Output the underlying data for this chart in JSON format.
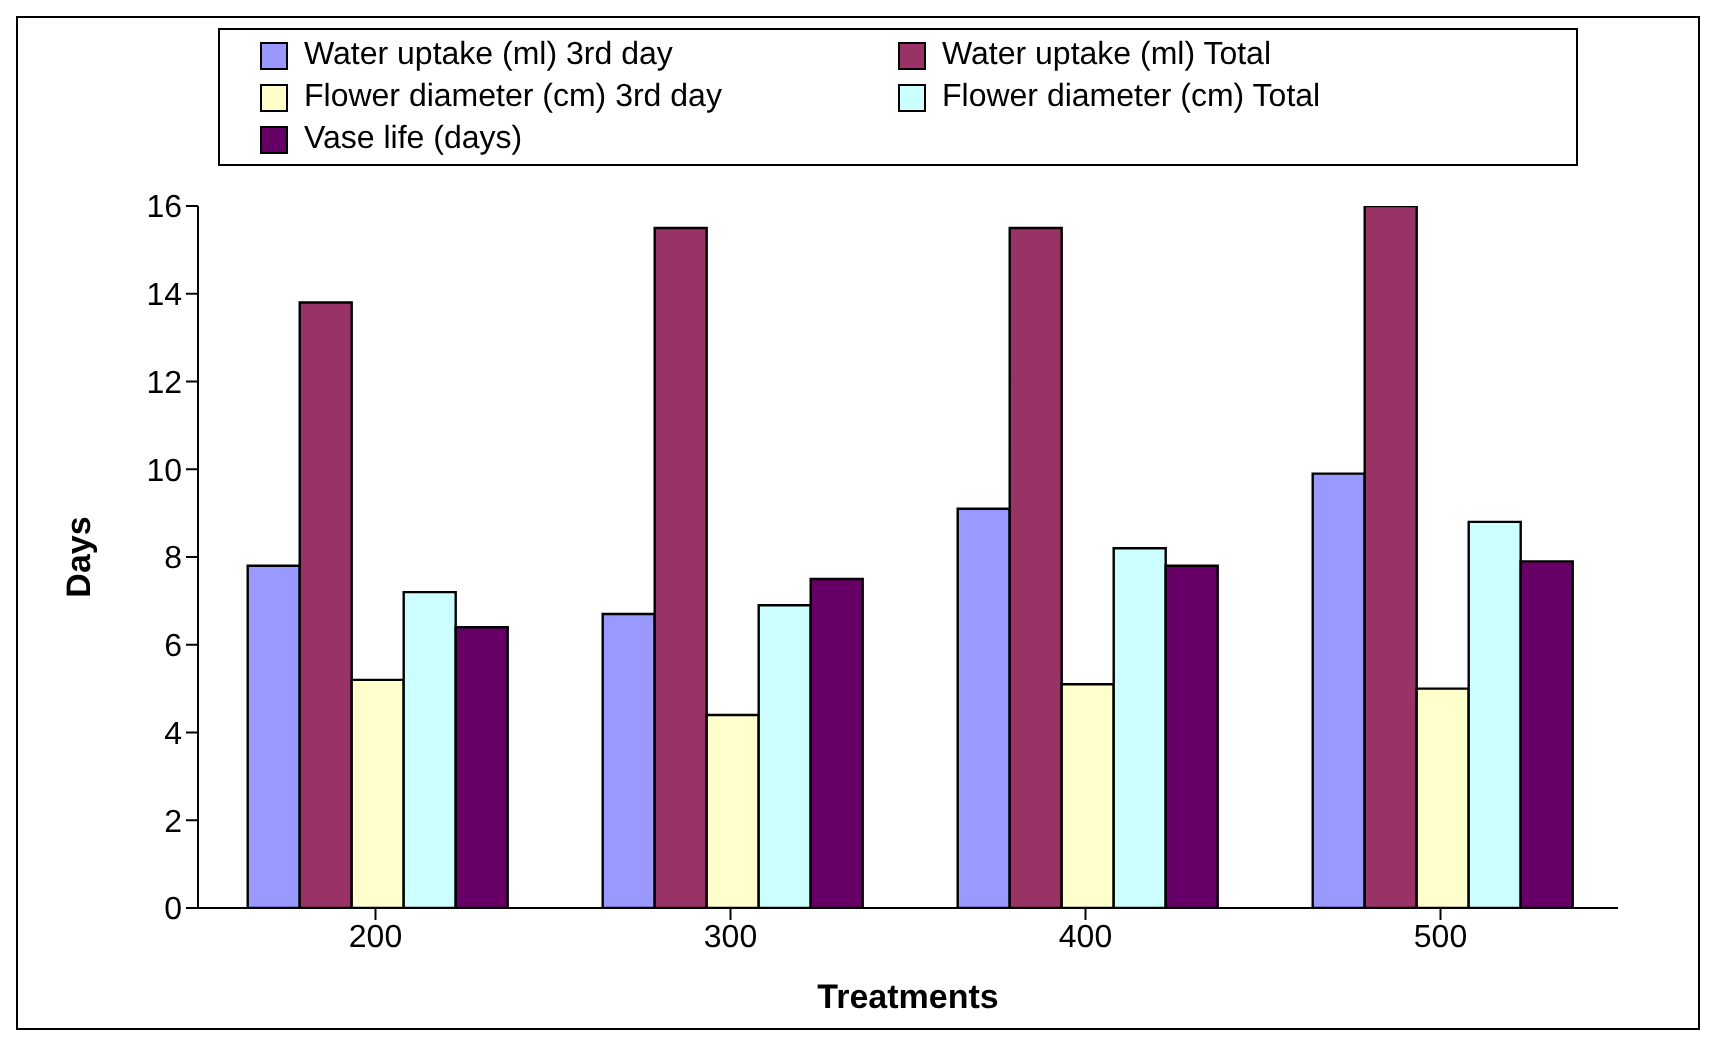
{
  "chart_data": {
    "type": "bar",
    "xlabel": "Treatments",
    "ylabel": "Days",
    "categories": [
      "200",
      "300",
      "400",
      "500"
    ],
    "series": [
      {
        "name": "Water uptake (ml) 3rd day",
        "color": "#9999ff",
        "values": [
          7.8,
          6.7,
          9.1,
          9.9
        ]
      },
      {
        "name": "Water uptake (ml) Total",
        "color": "#993366",
        "values": [
          13.8,
          15.5,
          15.5,
          16.0
        ]
      },
      {
        "name": "Flower diameter (cm) 3rd day",
        "color": "#ffffcc",
        "values": [
          5.2,
          4.4,
          5.1,
          5.0
        ]
      },
      {
        "name": "Flower diameter (cm) Total",
        "color": "#ccffff",
        "values": [
          7.2,
          6.9,
          8.2,
          8.8
        ]
      },
      {
        "name": "Vase life (days)",
        "color": "#660066",
        "values": [
          6.4,
          7.5,
          7.8,
          7.9
        ]
      }
    ],
    "ylim": [
      0,
      16
    ],
    "yticks": [
      0,
      2,
      4,
      6,
      8,
      10,
      12,
      14,
      16
    ],
    "grid": false,
    "legend": "top"
  }
}
